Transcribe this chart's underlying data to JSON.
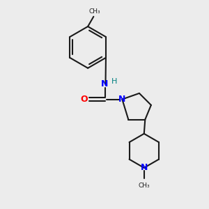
{
  "background_color": "#ececec",
  "bond_color": "#1a1a1a",
  "nitrogen_color": "#0000ff",
  "oxygen_color": "#ff0000",
  "hydrogen_color": "#008080",
  "lw": 1.5,
  "xlim": [
    0,
    10
  ],
  "ylim": [
    0,
    10
  ]
}
